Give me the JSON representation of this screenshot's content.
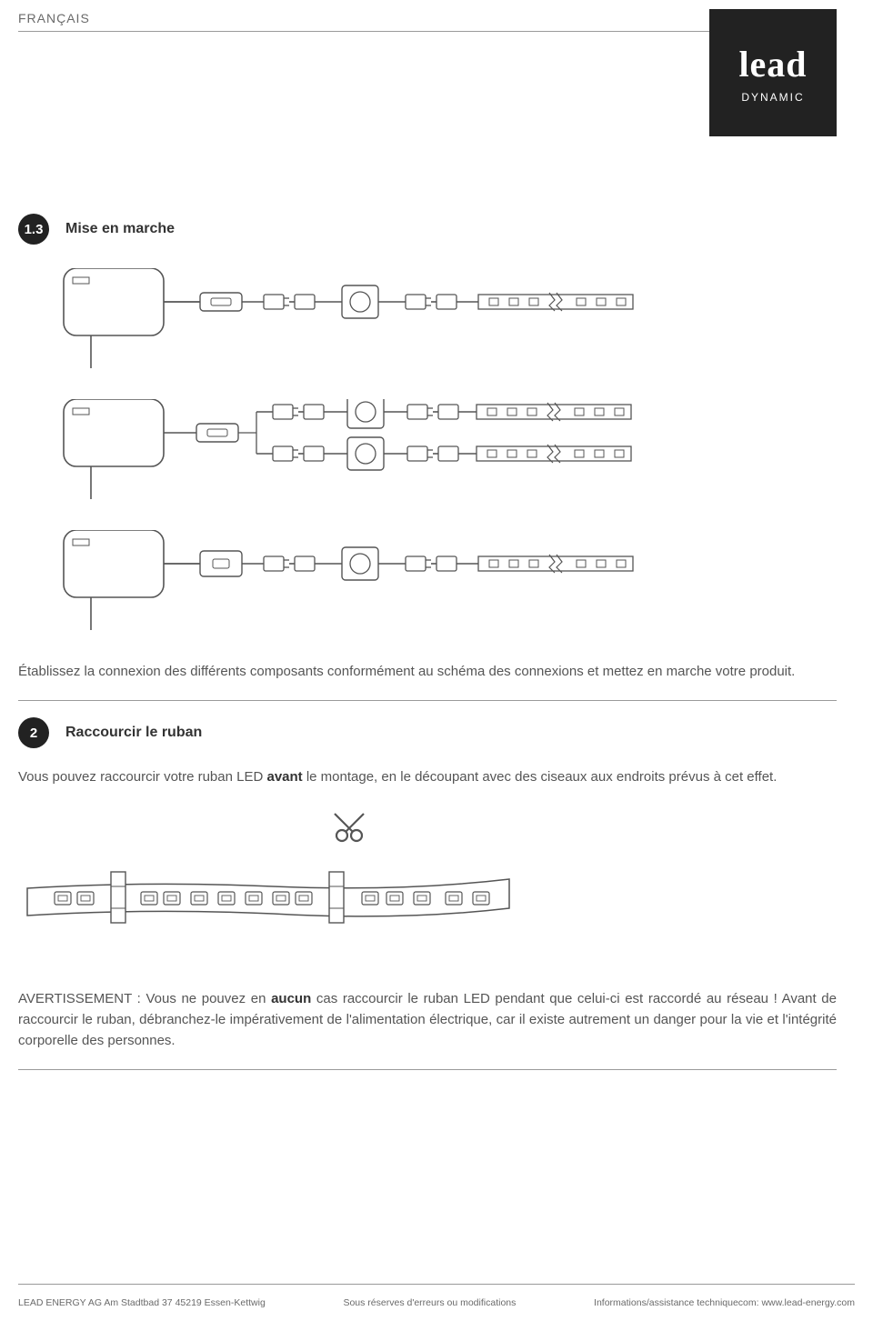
{
  "header": {
    "language": "FRANÇAIS",
    "logo_main": "lead",
    "logo_sub": "DYNAMIC",
    "logo_bg": "#222222",
    "logo_fg": "#ffffff"
  },
  "section_1_3": {
    "number": "1.3",
    "title": "Mise en marche",
    "body": "Établissez la connexion des différents composants conformément au schéma des connexions et mettez en marche votre produit."
  },
  "section_2": {
    "number": "2",
    "title": "Raccourcir le ruban",
    "body_pre": "Vous pouvez raccourcir votre ruban LED ",
    "body_bold": "avant",
    "body_post": " le montage, en le découpant avec des ciseaux aux endroits prévus à cet effet.",
    "warning_pre": "AVERTISSEMENT : Vous ne pouvez en ",
    "warning_bold": "aucun",
    "warning_post": " cas raccourcir le ruban LED pendant que celui-ci est raccordé au réseau ! Avant de raccourcir le ruban, débranchez-le impérativement de l'alimentation électrique, car il existe autrement un danger pour la vie et l'intégrité corporelle des personnes."
  },
  "diagrams": {
    "stroke": "#555555",
    "fill": "#ffffff",
    "chains": [
      {
        "psu_y": 0,
        "rows": [
          {
            "y": 28
          }
        ]
      },
      {
        "psu_y": 0,
        "rows": [
          {
            "y": 10
          },
          {
            "y": 58
          }
        ],
        "split": true
      },
      {
        "psu_y": 0,
        "rows": [
          {
            "y": 28
          }
        ],
        "alt_controller": true
      }
    ]
  },
  "footer": {
    "left": "LEAD ENERGY AG  Am Stadtbad 37 45219  Essen-Kettwig",
    "mid": "Sous réserves d'erreurs ou modifications",
    "right": "Informations/assistance techniquecom: www.lead-energy.com"
  },
  "colors": {
    "rule": "#9a9a9a",
    "text": "#555555",
    "heading": "#333333",
    "bullet_bg": "#222222"
  }
}
